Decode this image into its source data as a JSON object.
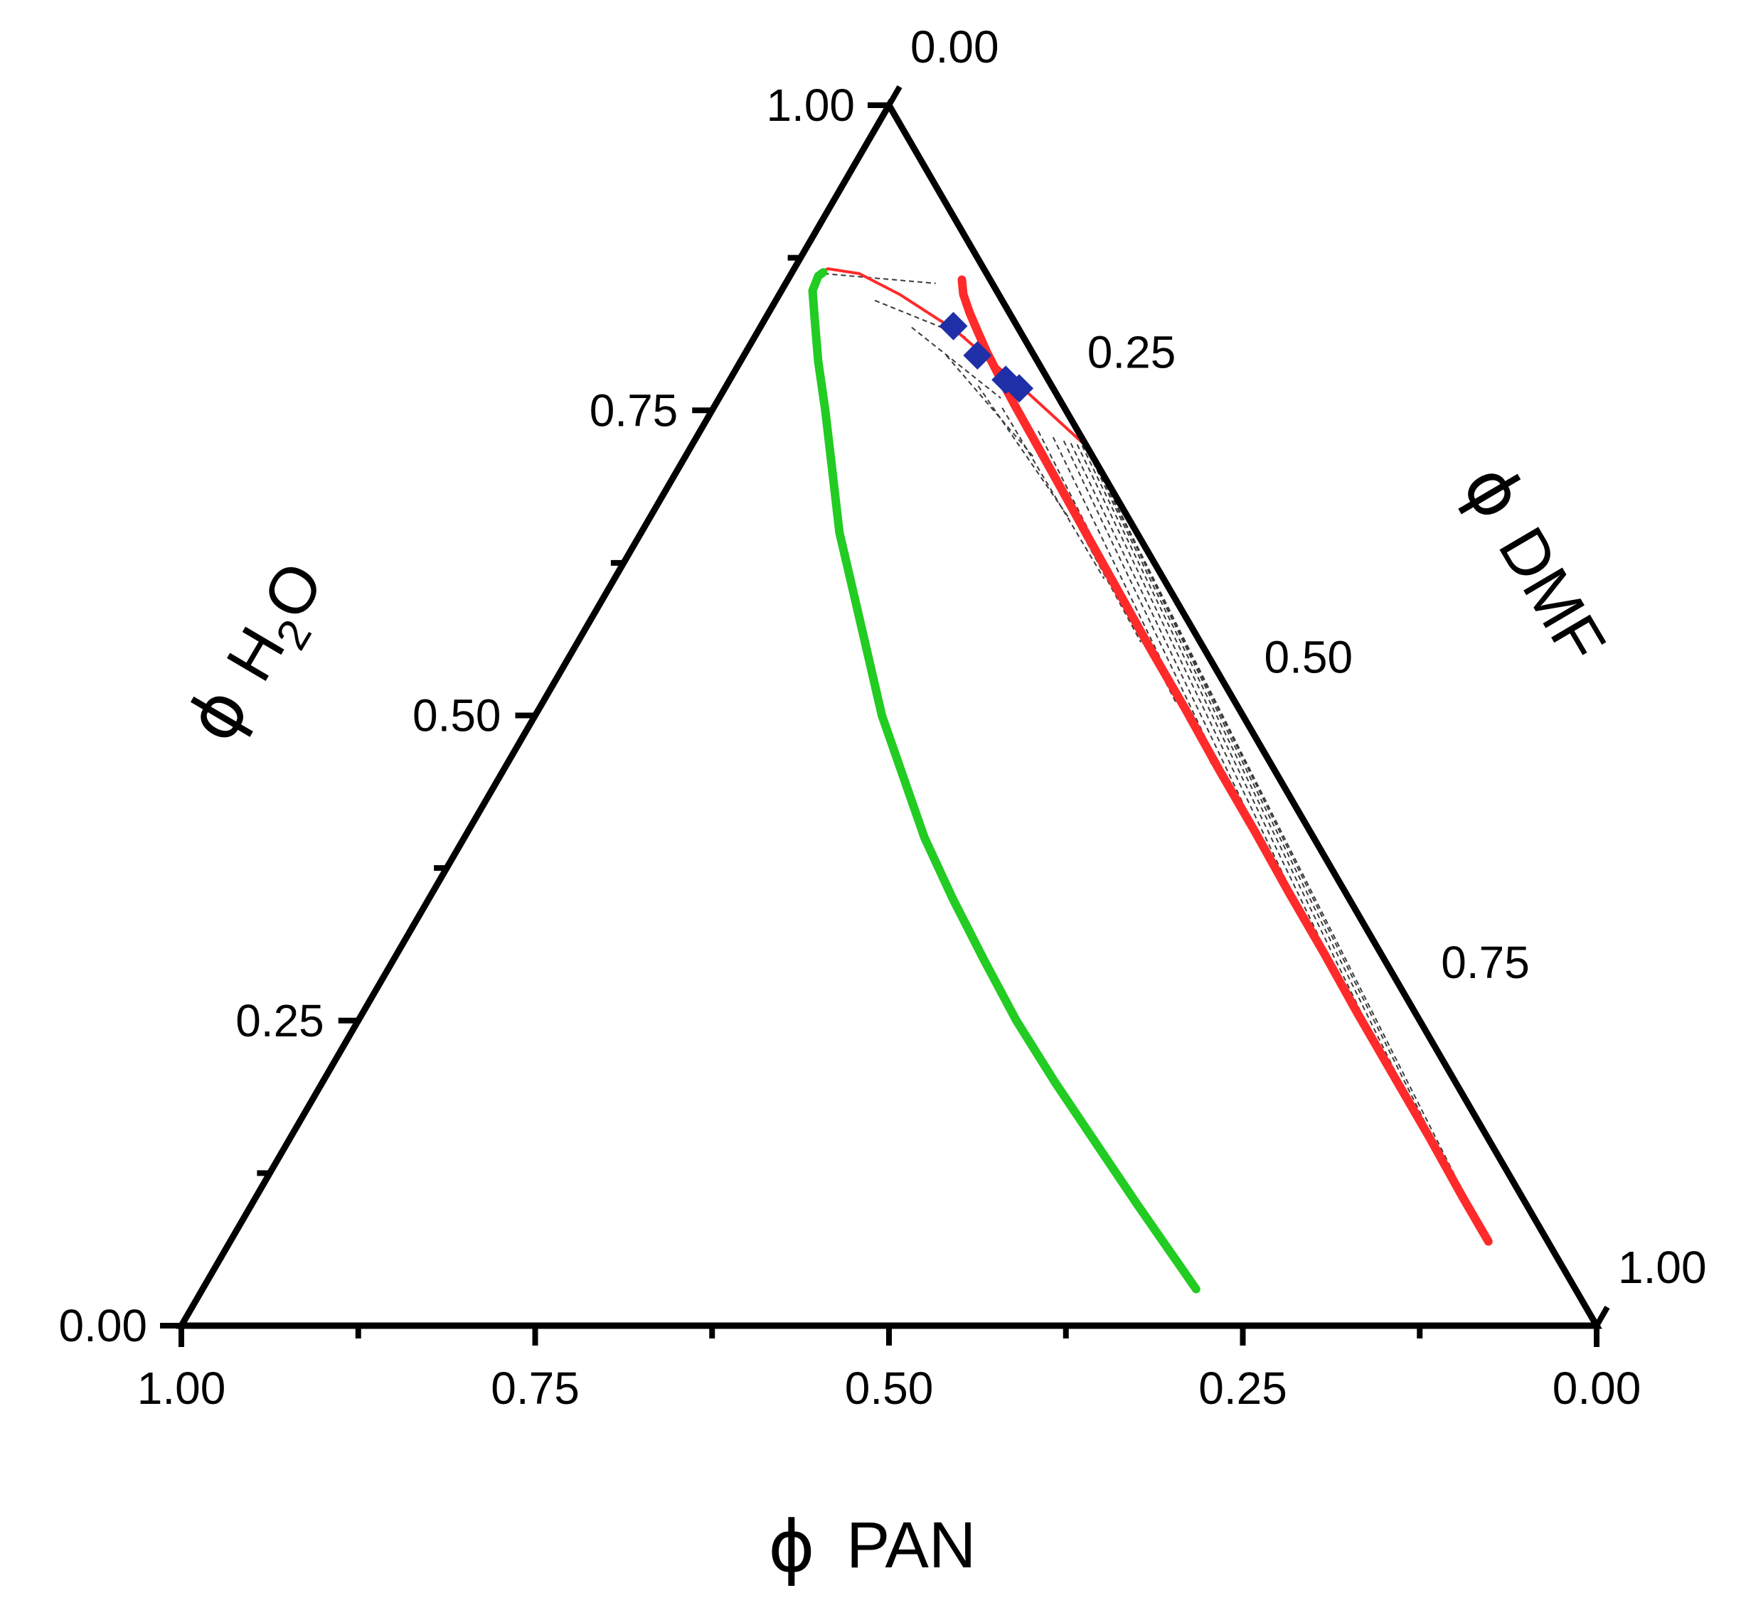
{
  "chart_data": {
    "type": "ternary",
    "axes": {
      "bottom": {
        "label": "PAN",
        "symbol": "ϕ",
        "tick_labels": [
          "1.00",
          "0.75",
          "0.50",
          "0.25",
          "0.00"
        ]
      },
      "left": {
        "label_main": "H",
        "label_sub": "2",
        "label_end": "O",
        "symbol": "ϕ",
        "tick_labels": [
          "0.00",
          "0.25",
          "0.50",
          "0.75",
          "1.00"
        ]
      },
      "right": {
        "label": "DMF",
        "symbol": "ϕ",
        "tick_labels": [
          "0.00",
          "0.25",
          "0.50",
          "0.75",
          "1.00"
        ]
      }
    },
    "series": [
      {
        "kind": "binodal",
        "color": "#ff2a2a",
        "points_pan_h2o": [
          [
            0.02,
            0.857
          ],
          [
            0.025,
            0.845
          ],
          [
            0.028,
            0.83
          ],
          [
            0.03,
            0.815
          ],
          [
            0.032,
            0.798
          ],
          [
            0.033,
            0.78
          ],
          [
            0.034,
            0.755
          ],
          [
            0.035,
            0.705
          ],
          [
            0.036,
            0.655
          ],
          [
            0.037,
            0.605
          ],
          [
            0.038,
            0.555
          ],
          [
            0.038,
            0.505
          ],
          [
            0.039,
            0.455
          ],
          [
            0.039,
            0.405
          ],
          [
            0.04,
            0.355
          ],
          [
            0.04,
            0.305
          ],
          [
            0.041,
            0.255
          ],
          [
            0.041,
            0.205
          ],
          [
            0.041,
            0.155
          ],
          [
            0.042,
            0.105
          ],
          [
            0.042,
            0.069
          ]
        ]
      },
      {
        "kind": "binodal-polymer-rich-branch",
        "color": "#ff2a2a",
        "points_pan_h2o": [
          [
            0.0,
            0.72
          ],
          [
            0.02,
            0.765
          ],
          [
            0.045,
            0.815
          ],
          [
            0.07,
            0.845
          ],
          [
            0.09,
            0.862
          ],
          [
            0.11,
            0.866
          ],
          [
            0.12,
            0.862
          ]
        ]
      },
      {
        "kind": "spinodal",
        "color": "#22cc22",
        "points_pan_h2o": [
          [
            0.115,
            0.863
          ],
          [
            0.12,
            0.86
          ],
          [
            0.13,
            0.848
          ],
          [
            0.14,
            0.825
          ],
          [
            0.155,
            0.79
          ],
          [
            0.17,
            0.75
          ],
          [
            0.19,
            0.7
          ],
          [
            0.21,
            0.65
          ],
          [
            0.225,
            0.6
          ],
          [
            0.24,
            0.55
          ],
          [
            0.255,
            0.5
          ],
          [
            0.265,
            0.45
          ],
          [
            0.275,
            0.4
          ],
          [
            0.28,
            0.35
          ],
          [
            0.283,
            0.3
          ],
          [
            0.285,
            0.25
          ],
          [
            0.283,
            0.2
          ],
          [
            0.279,
            0.15
          ],
          [
            0.275,
            0.1
          ],
          [
            0.27,
            0.05
          ],
          [
            0.268,
            0.03
          ]
        ]
      },
      {
        "kind": "cloud-points",
        "color": "#1f2fa8",
        "marker": "diamond",
        "points_pan_h2o": [
          [
            0.045,
            0.819
          ],
          [
            0.04,
            0.795
          ],
          [
            0.03,
            0.775
          ],
          [
            0.024,
            0.768
          ]
        ]
      }
    ],
    "tie_lines_pan_h2o": [
      [
        [
          0.115,
          0.862
        ],
        [
          0.04,
          0.854
        ]
      ],
      [
        [
          0.09,
          0.84
        ],
        [
          0.041,
          0.81
        ]
      ],
      [
        [
          0.075,
          0.818
        ],
        [
          0.041,
          0.76
        ]
      ],
      [
        [
          0.062,
          0.795
        ],
        [
          0.042,
          0.712
        ]
      ],
      [
        [
          0.052,
          0.77
        ],
        [
          0.042,
          0.662
        ]
      ],
      [
        [
          0.044,
          0.752
        ],
        [
          0.042,
          0.612
        ]
      ],
      [
        [
          0.036,
          0.74
        ],
        [
          0.042,
          0.56
        ]
      ],
      [
        [
          0.028,
          0.733
        ],
        [
          0.042,
          0.51
        ]
      ],
      [
        [
          0.02,
          0.728
        ],
        [
          0.042,
          0.46
        ]
      ],
      [
        [
          0.014,
          0.725
        ],
        [
          0.042,
          0.41
        ]
      ],
      [
        [
          0.01,
          0.723
        ],
        [
          0.042,
          0.358
        ]
      ],
      [
        [
          0.006,
          0.722
        ],
        [
          0.042,
          0.308
        ]
      ],
      [
        [
          0.003,
          0.721
        ],
        [
          0.042,
          0.258
        ]
      ],
      [
        [
          0.001,
          0.72
        ],
        [
          0.042,
          0.208
        ]
      ],
      [
        [
          0.0,
          0.72
        ],
        [
          0.042,
          0.158
        ]
      ],
      [
        [
          0.0,
          0.72
        ],
        [
          0.042,
          0.108
        ]
      ],
      [
        [
          0.0,
          0.72
        ],
        [
          0.042,
          0.072
        ]
      ]
    ]
  }
}
